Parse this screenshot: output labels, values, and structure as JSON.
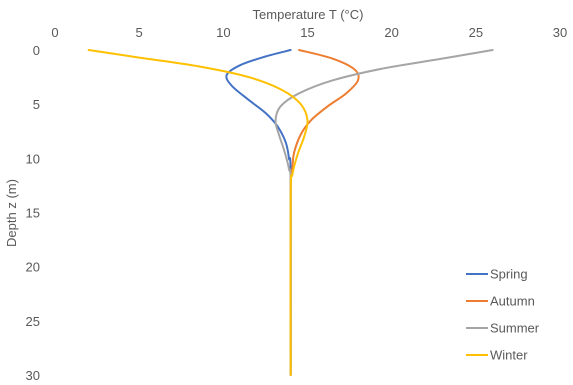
{
  "chart_data": {
    "type": "line",
    "xlabel": "Temperature  T (°C)",
    "ylabel": "Depth z (m)",
    "xlim": [
      0,
      30
    ],
    "ylim": [
      0,
      30
    ],
    "x_ticks": [
      0,
      5,
      10,
      15,
      20,
      25,
      30
    ],
    "y_ticks": [
      0,
      5,
      10,
      15,
      20,
      25,
      30
    ],
    "x_axis_position": "top",
    "y_axis_inverted": true,
    "grid": false,
    "legend_position": "bottom-right",
    "series": [
      {
        "name": "Spring",
        "color": "#4472c4",
        "points": [
          [
            14,
            0
          ],
          [
            12.5,
            0.6
          ],
          [
            11,
            1.4
          ],
          [
            10.2,
            2.3
          ],
          [
            10.5,
            3.3
          ],
          [
            11.5,
            4.6
          ],
          [
            12.5,
            5.8
          ],
          [
            13.2,
            7.0
          ],
          [
            13.7,
            8.5
          ],
          [
            13.9,
            10.0
          ],
          [
            14,
            12.0
          ],
          [
            14,
            30
          ]
        ]
      },
      {
        "name": "Autumn",
        "color": "#ed7d31",
        "points": [
          [
            14.5,
            0
          ],
          [
            16.5,
            0.8
          ],
          [
            17.8,
            1.8
          ],
          [
            18,
            2.8
          ],
          [
            17.3,
            4.0
          ],
          [
            16.2,
            5.2
          ],
          [
            15.2,
            6.5
          ],
          [
            14.6,
            7.8
          ],
          [
            14.2,
            9.5
          ],
          [
            14.1,
            11.0
          ],
          [
            14,
            13.0
          ],
          [
            14,
            30
          ]
        ]
      },
      {
        "name": "Summer",
        "color": "#a5a5a5",
        "points": [
          [
            26,
            0
          ],
          [
            23,
            0.8
          ],
          [
            19.5,
            1.7
          ],
          [
            16.5,
            2.8
          ],
          [
            14.5,
            4.0
          ],
          [
            13.4,
            5.2
          ],
          [
            13.1,
            6.5
          ],
          [
            13.3,
            7.8
          ],
          [
            13.6,
            9.2
          ],
          [
            13.9,
            11.0
          ],
          [
            14,
            13.0
          ],
          [
            14,
            30
          ]
        ]
      },
      {
        "name": "Winter",
        "color": "#ffc000",
        "points": [
          [
            2,
            0
          ],
          [
            5,
            0.7
          ],
          [
            8.5,
            1.5
          ],
          [
            11.5,
            2.5
          ],
          [
            13.5,
            3.7
          ],
          [
            14.6,
            5.0
          ],
          [
            15,
            6.5
          ],
          [
            14.8,
            8.0
          ],
          [
            14.4,
            9.7
          ],
          [
            14.1,
            11.5
          ],
          [
            14,
            13.5
          ],
          [
            14,
            30
          ]
        ]
      }
    ]
  }
}
